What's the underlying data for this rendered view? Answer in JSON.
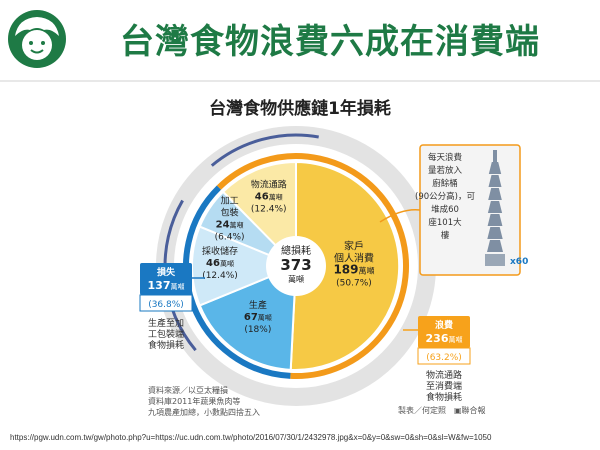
{
  "slide": {
    "title": "台灣食物浪費六成在消費端",
    "footer_url": "https://pgw.udn.com.tw/gw/photo.php?u=https://uc.udn.com.tw/photo/2016/07/30/1/2432978.jpg&x=0&y=0&sw=0&sh=0&sl=W&fw=1050"
  },
  "colors": {
    "title_green": "#1e7a45",
    "consumer": "#f6c945",
    "logistics": "#fbe9a6",
    "processing": "#b5dcf2",
    "storage": "#cfe9f8",
    "production": "#5ab6e8",
    "outer_ring": "#e3e3e3",
    "ring_blue": "#1a78c2",
    "ring_orange": "#f39a1a",
    "callout_orange": "#f7a21b",
    "callout_blue": "#1a78c2"
  },
  "chart_data": {
    "type": "pie",
    "title": "台灣食物供應鏈1年損耗",
    "unit": "萬噸",
    "total": {
      "label": "總損耗",
      "value": 373,
      "unit": "萬噸"
    },
    "slices": [
      {
        "name": "家戶個人消費",
        "value": 189,
        "unit": "萬噸",
        "percent": 50.7
      },
      {
        "name": "生產",
        "value": 67,
        "unit": "萬噸",
        "percent": 18
      },
      {
        "name": "採收儲存",
        "value": 46,
        "unit": "萬噸",
        "percent": 12.4
      },
      {
        "name": "加工包裝",
        "value": 24,
        "unit": "萬噸",
        "percent": 6.4
      },
      {
        "name": "物流通路",
        "value": 46,
        "unit": "萬噸",
        "percent": 12.4
      }
    ],
    "groups": {
      "loss": {
        "label": "損失",
        "value": 137,
        "unit": "萬噸",
        "percent_text": "(36.8%)",
        "desc": "生產至加工包裝端食物損耗"
      },
      "waste": {
        "label": "浪費",
        "value": 236,
        "unit": "萬噸",
        "percent_text": "(63.2%)",
        "desc": "物流通路至消費端食物損耗"
      }
    },
    "tower_note": "每天浪費量若放入廚餘桶(90公分高)，可堆成60座101大樓",
    "tower_multiplier": "x60",
    "source_lines": [
      "資料來源／以亞太糧損",
      "資料庫2011年蔬果魚肉等",
      "九項農產加總，小數點四捨五入"
    ],
    "credits": "製表／何定照　▣聯合報"
  }
}
